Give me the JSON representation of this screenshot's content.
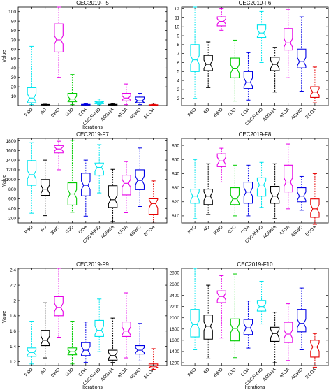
{
  "categories": [
    "PSO",
    "AO",
    "BWO",
    "GJO",
    "COA",
    "CSCAHHO",
    "AOSMA",
    "ATOA",
    "AGWO",
    "ECOA"
  ],
  "colors": [
    "#00e5ee",
    "#000000",
    "#e600e6",
    "#00cc00",
    "#0000e6",
    "#00e5ee",
    "#000000",
    "#e600e6",
    "#0000e6",
    "#e60000"
  ],
  "chart_data": [
    {
      "type": "box",
      "title": "CEC2019-F5",
      "xlabel": "Iterations",
      "ylabel": "Value",
      "ylim": [
        0,
        105
      ],
      "yticks": [
        10,
        20,
        30,
        40,
        50,
        60,
        70,
        80,
        90,
        100
      ],
      "boxes": [
        {
          "min": 1,
          "q1": 3,
          "median": 8,
          "q3": 19,
          "max": 63
        },
        {
          "min": 0.5,
          "q1": 0.8,
          "median": 1,
          "q3": 1.2,
          "max": 1.5
        },
        {
          "min": 30,
          "q1": 57,
          "median": 70,
          "q3": 87,
          "max": 105
        },
        {
          "min": 1,
          "q1": 4,
          "median": 7,
          "q3": 13,
          "max": 33
        },
        {
          "min": 0.5,
          "q1": 0.7,
          "median": 1,
          "q3": 1.3,
          "max": 2
        },
        {
          "min": 1,
          "q1": 2,
          "median": 3.5,
          "q3": 4.5,
          "max": 7
        },
        {
          "min": 0.5,
          "q1": 0.7,
          "median": 1,
          "q3": 1.3,
          "max": 2
        },
        {
          "min": 1,
          "q1": 5,
          "median": 8,
          "q3": 13,
          "max": 23
        },
        {
          "min": 1,
          "q1": 3,
          "median": 5,
          "q3": 9,
          "max": 13
        },
        {
          "min": 0.3,
          "q1": 0.5,
          "median": 0.7,
          "q3": 0.9,
          "max": 1.3
        }
      ]
    },
    {
      "type": "box",
      "title": "CEC2019-F6",
      "xlabel": "",
      "ylabel": "",
      "ylim": [
        1.2,
        12.2
      ],
      "yticks": [
        2,
        3,
        4,
        5,
        6,
        7,
        8,
        9,
        10,
        11,
        12
      ],
      "boxes": [
        {
          "min": 2,
          "q1": 5,
          "median": 6.3,
          "q3": 8,
          "max": 12.2
        },
        {
          "min": 3.2,
          "q1": 5.1,
          "median": 5.8,
          "q3": 6.8,
          "max": 8.3
        },
        {
          "min": 9.6,
          "q1": 10.1,
          "median": 10.6,
          "q3": 11.1,
          "max": 12.0
        },
        {
          "min": 1.7,
          "q1": 4.3,
          "median": 5.3,
          "q3": 6.5,
          "max": 8.5
        },
        {
          "min": 1.8,
          "q1": 3.1,
          "median": 3.8,
          "q3": 5.0,
          "max": 7.1
        },
        {
          "min": 6.0,
          "q1": 8.8,
          "median": 9.3,
          "q3": 10.2,
          "max": 11.7
        },
        {
          "min": 2.7,
          "q1": 5.1,
          "median": 5.8,
          "q3": 6.6,
          "max": 7.7
        },
        {
          "min": 4.3,
          "q1": 7.4,
          "median": 8.2,
          "q3": 9.8,
          "max": 11.9
        },
        {
          "min": 2.8,
          "q1": 5.4,
          "median": 6.1,
          "q3": 7.5,
          "max": 11.1
        },
        {
          "min": 1.5,
          "q1": 2.1,
          "median": 2.7,
          "q3": 3.3,
          "max": 5.5
        }
      ]
    },
    {
      "type": "box",
      "title": "CEC2019-F7",
      "xlabel": "",
      "ylabel": "Value",
      "ylim": [
        100,
        1850
      ],
      "yticks": [
        200,
        400,
        600,
        800,
        1000,
        1200,
        1400,
        1600,
        1800
      ],
      "boxes": [
        {
          "min": 300,
          "q1": 880,
          "median": 1100,
          "q3": 1390,
          "max": 1760
        },
        {
          "min": 250,
          "q1": 670,
          "median": 800,
          "q3": 1000,
          "max": 1400
        },
        {
          "min": 1200,
          "q1": 1550,
          "median": 1630,
          "q3": 1700,
          "max": 1790
        },
        {
          "min": 320,
          "q1": 470,
          "median": 700,
          "q3": 930,
          "max": 1810
        },
        {
          "min": 240,
          "q1": 660,
          "median": 880,
          "q3": 1130,
          "max": 1400
        },
        {
          "min": 720,
          "q1": 1090,
          "median": 1250,
          "q3": 1340,
          "max": 1720
        },
        {
          "min": 130,
          "q1": 420,
          "median": 580,
          "q3": 870,
          "max": 1210
        },
        {
          "min": 310,
          "q1": 680,
          "median": 920,
          "q3": 1090,
          "max": 1370
        },
        {
          "min": 440,
          "q1": 790,
          "median": 980,
          "q3": 1200,
          "max": 1650
        },
        {
          "min": 120,
          "q1": 280,
          "median": 500,
          "q3": 600,
          "max": 970
        }
      ]
    },
    {
      "type": "box",
      "title": "CEC2019-F8",
      "xlabel": "",
      "ylabel": "",
      "ylim": [
        805,
        865
      ],
      "yticks": [
        810,
        820,
        830,
        840,
        850,
        860
      ],
      "boxes": [
        {
          "min": 808,
          "q1": 819,
          "median": 824,
          "q3": 829,
          "max": 850
        },
        {
          "min": 811,
          "q1": 818,
          "median": 824,
          "q3": 829,
          "max": 847
        },
        {
          "min": 834,
          "q1": 845,
          "median": 849,
          "q3": 854,
          "max": 858
        },
        {
          "min": 810,
          "q1": 818,
          "median": 822,
          "q3": 830,
          "max": 846
        },
        {
          "min": 810,
          "q1": 819,
          "median": 827,
          "q3": 834,
          "max": 846
        },
        {
          "min": 816,
          "q1": 824,
          "median": 832,
          "q3": 837,
          "max": 848
        },
        {
          "min": 808,
          "q1": 819,
          "median": 824,
          "q3": 831,
          "max": 847
        },
        {
          "min": 815,
          "q1": 827,
          "median": 834,
          "q3": 846,
          "max": 861
        },
        {
          "min": 814,
          "q1": 820,
          "median": 824,
          "q3": 830,
          "max": 838
        },
        {
          "min": 804,
          "q1": 809,
          "median": 815,
          "q3": 822,
          "max": 840
        }
      ]
    },
    {
      "type": "box",
      "title": "CEC2019-F9",
      "xlabel": "Iterations",
      "ylabel": "Value",
      "ylim": [
        1.15,
        2.42
      ],
      "yticks": [
        1.2,
        1.4,
        1.6,
        1.8,
        2,
        2.2,
        2.4
      ],
      "boxes": [
        {
          "min": 1.17,
          "q1": 1.27,
          "median": 1.32,
          "q3": 1.38,
          "max": 1.73
        },
        {
          "min": 1.25,
          "q1": 1.41,
          "median": 1.48,
          "q3": 1.61,
          "max": 1.97
        },
        {
          "min": 1.52,
          "q1": 1.8,
          "median": 1.91,
          "q3": 2.05,
          "max": 2.42
        },
        {
          "min": 1.17,
          "q1": 1.29,
          "median": 1.33,
          "q3": 1.38,
          "max": 1.73
        },
        {
          "min": 1.19,
          "q1": 1.28,
          "median": 1.35,
          "q3": 1.45,
          "max": 1.72
        },
        {
          "min": 1.33,
          "q1": 1.53,
          "median": 1.61,
          "q3": 1.74,
          "max": 2.02
        },
        {
          "min": 1.19,
          "q1": 1.22,
          "median": 1.28,
          "q3": 1.35,
          "max": 1.77
        },
        {
          "min": 1.25,
          "q1": 1.53,
          "median": 1.6,
          "q3": 1.72,
          "max": 2.1
        },
        {
          "min": 1.21,
          "q1": 1.3,
          "median": 1.35,
          "q3": 1.41,
          "max": 1.7
        },
        {
          "min": 1.1,
          "q1": 1.12,
          "median": 1.14,
          "q3": 1.17,
          "max": 1.37
        }
      ]
    },
    {
      "type": "box",
      "title": "CEC2019-F10",
      "xlabel": "Iterations",
      "ylabel": "",
      "ylim": [
        1150,
        2880
      ],
      "yticks": [
        1200,
        1400,
        1600,
        1800,
        2000,
        2200,
        2400,
        2600,
        2800
      ],
      "boxes": [
        {
          "min": 1430,
          "q1": 1660,
          "median": 1880,
          "q3": 2150,
          "max": 2880
        },
        {
          "min": 1270,
          "q1": 1620,
          "median": 1850,
          "q3": 2050,
          "max": 2580
        },
        {
          "min": 1640,
          "q1": 2270,
          "median": 2380,
          "q3": 2480,
          "max": 2750
        },
        {
          "min": 1290,
          "q1": 1590,
          "median": 1810,
          "q3": 1980,
          "max": 2780
        },
        {
          "min": 1460,
          "q1": 1700,
          "median": 1820,
          "q3": 1970,
          "max": 2300
        },
        {
          "min": 1890,
          "q1": 2120,
          "median": 2200,
          "q3": 2310,
          "max": 2650
        },
        {
          "min": 1200,
          "q1": 1580,
          "median": 1720,
          "q3": 1830,
          "max": 2100
        },
        {
          "min": 1240,
          "q1": 1560,
          "median": 1710,
          "q3": 1920,
          "max": 2250
        },
        {
          "min": 1430,
          "q1": 1750,
          "median": 1900,
          "q3": 2150,
          "max": 2530
        },
        {
          "min": 1120,
          "q1": 1300,
          "median": 1480,
          "q3": 1600,
          "max": 1720
        }
      ]
    }
  ]
}
